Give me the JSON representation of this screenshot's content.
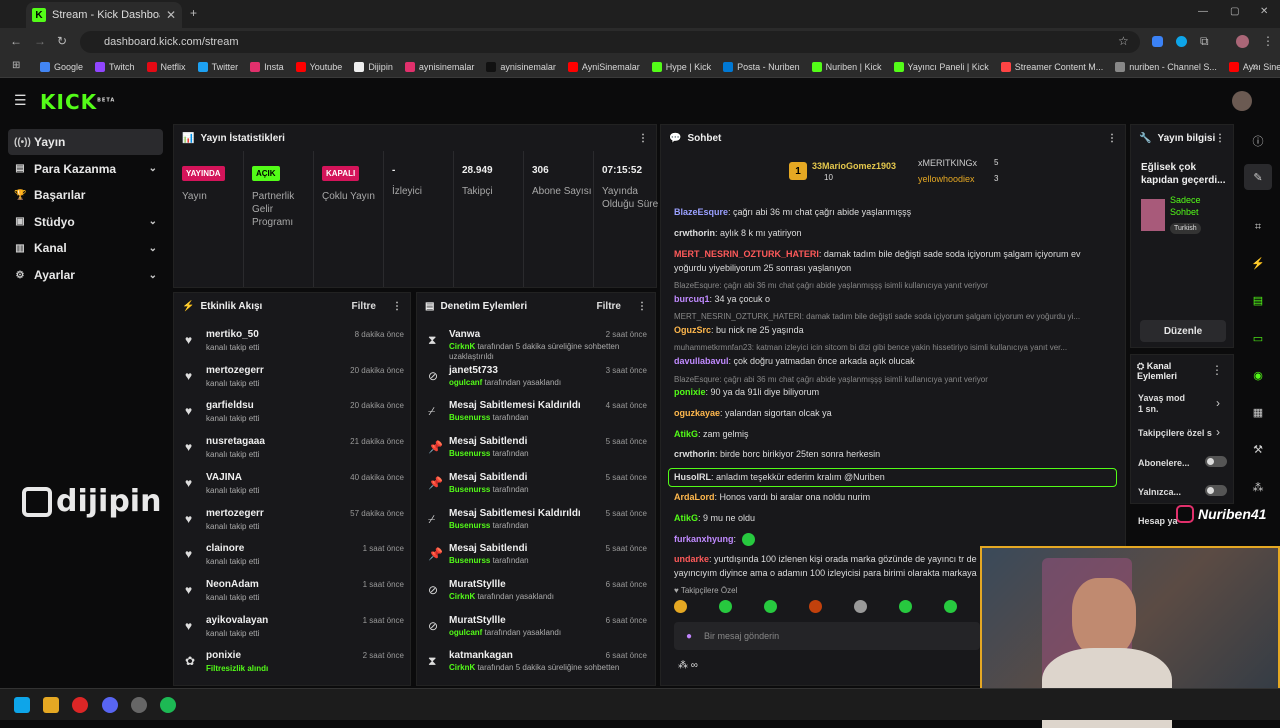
{
  "browser": {
    "tab_title": "Stream - Kick Dashboard",
    "url": "dashboard.kick.com/stream",
    "bookmarks": [
      {
        "label": "Google",
        "color": "#4285f4"
      },
      {
        "label": "Twitch",
        "color": "#9146ff"
      },
      {
        "label": "Netflix",
        "color": "#e50914"
      },
      {
        "label": "Twitter",
        "color": "#1da1f2"
      },
      {
        "label": "Insta",
        "color": "#e1306c"
      },
      {
        "label": "Youtube",
        "color": "#ff0000"
      },
      {
        "label": "Dijipin",
        "color": "#eeeeee"
      },
      {
        "label": "aynisinemalar",
        "color": "#e1306c"
      },
      {
        "label": "aynisinemalar",
        "color": "#111111"
      },
      {
        "label": "AyniSinemalar",
        "color": "#ff0000"
      },
      {
        "label": "Hype | Kick",
        "color": "#53fc18"
      },
      {
        "label": "Posta - Nuriben",
        "color": "#0078d4"
      },
      {
        "label": "Nuriben | Kick",
        "color": "#53fc18"
      },
      {
        "label": "Yayıncı Paneli | Kick",
        "color": "#53fc18"
      },
      {
        "label": "Streamer Content M...",
        "color": "#ff4444"
      },
      {
        "label": "nuriben - Channel S...",
        "color": "#888888"
      },
      {
        "label": "Aynı Sinemalar - Ça...",
        "color": "#ff0000"
      }
    ]
  },
  "kick": {
    "logo": "KICK",
    "beta": "BETA"
  },
  "sidebar": {
    "items": [
      {
        "label": "Yayın",
        "icon": "broadcast-icon",
        "chevron": false
      },
      {
        "label": "Para Kazanma",
        "icon": "money-icon",
        "chevron": true
      },
      {
        "label": "Başarılar",
        "icon": "trophy-icon",
        "chevron": false
      },
      {
        "label": "Stüdyo",
        "icon": "studio-icon",
        "chevron": true
      },
      {
        "label": "Kanal",
        "icon": "channel-icon",
        "chevron": true
      },
      {
        "label": "Ayarlar",
        "icon": "gear-icon",
        "chevron": true
      }
    ],
    "brand": "dijipin"
  },
  "stats": {
    "title": "Yayın İstatistikleri",
    "items": [
      {
        "value": "YAYINDA",
        "label": "Yayın",
        "badge_color": "#d4145a"
      },
      {
        "value": "AÇIK",
        "label": "Partnerlik Gelir Programı",
        "badge_color": "#53fc18"
      },
      {
        "value": "KAPALI",
        "label": "Çoklu Yayın",
        "badge_color": "#d4145a"
      },
      {
        "value": "-",
        "label": "İzleyici"
      },
      {
        "value": "28.949",
        "label": "Takipçi"
      },
      {
        "value": "306",
        "label": "Abone Sayısı"
      },
      {
        "value": "07:15:52",
        "label": "Yayında Olduğu Süre"
      }
    ]
  },
  "activity": {
    "title": "Etkinlik Akışı",
    "filter": "Filtre",
    "events": [
      {
        "name": "mertiko_50",
        "sub": "kanalı takip etti",
        "time": "8 dakika önce"
      },
      {
        "name": "mertozegerr",
        "sub": "kanalı takip etti",
        "time": "20 dakika önce"
      },
      {
        "name": "garfieldsu",
        "sub": "kanalı takip etti",
        "time": "20 dakika önce"
      },
      {
        "name": "nusretagaaa",
        "sub": "kanalı takip etti",
        "time": "21 dakika önce"
      },
      {
        "name": "VAJINA",
        "sub": "kanalı takip etti",
        "time": "40 dakika önce"
      },
      {
        "name": "mertozegerr",
        "sub": "kanalı takip etti",
        "time": "57 dakika önce"
      },
      {
        "name": "clainore",
        "sub": "kanalı takip etti",
        "time": "1 saat önce"
      },
      {
        "name": "NeonAdam",
        "sub": "kanalı takip etti",
        "time": "1 saat önce"
      },
      {
        "name": "ayikovalayan",
        "sub": "kanalı takip etti",
        "time": "1 saat önce"
      },
      {
        "name": "ponixie",
        "sub": "Filtresizlik alındı",
        "time": "2 saat önce"
      }
    ]
  },
  "moderation": {
    "title": "Denetim Eylemleri",
    "filter": "Filtre",
    "actions": [
      {
        "icon": "hourglass-icon",
        "name": "Vanwa",
        "actor": "CirknK",
        "rest": " tarafından 5 dakika süreliğine sohbetten uzaklaştırıldı",
        "time": "2 saat önce"
      },
      {
        "icon": "ban-icon",
        "name": "janet5t733",
        "actor": "ogulcanf",
        "rest": " tarafından yasaklandı",
        "time": "3 saat önce"
      },
      {
        "icon": "unpin-icon",
        "name": "Mesaj Sabitlemesi Kaldırıldı",
        "actor": "Busenurss",
        "rest": " tarafından",
        "time": "4 saat önce"
      },
      {
        "icon": "pin-icon",
        "name": "Mesaj Sabitlendi",
        "actor": "Busenurss",
        "rest": " tarafından",
        "time": "5 saat önce"
      },
      {
        "icon": "pin-icon",
        "name": "Mesaj Sabitlendi",
        "actor": "Busenurss",
        "rest": " tarafından",
        "time": "5 saat önce"
      },
      {
        "icon": "unpin-icon",
        "name": "Mesaj Sabitlemesi Kaldırıldı",
        "actor": "Busenurss",
        "rest": " tarafından",
        "time": "5 saat önce"
      },
      {
        "icon": "pin-icon",
        "name": "Mesaj Sabitlendi",
        "actor": "Busenurss",
        "rest": " tarafından",
        "time": "5 saat önce"
      },
      {
        "icon": "ban-icon",
        "name": "MuratStyllle",
        "actor": "CirknK",
        "rest": " tarafından yasaklandı",
        "time": "6 saat önce"
      },
      {
        "icon": "ban-icon",
        "name": "MuratStyllle",
        "actor": "ogulcanf",
        "rest": " tarafından yasaklandı",
        "time": "6 saat önce"
      },
      {
        "icon": "hourglass-icon",
        "name": "katmankagan",
        "actor": "CirknK",
        "rest": " tarafından 5 dakika süreliğine sohbetten",
        "time": "6 saat önce"
      }
    ]
  },
  "chat": {
    "title": "Sohbet",
    "top": [
      {
        "name": "33MarioGomez1903",
        "count": "10",
        "rank": "1"
      },
      {
        "name": "xMERITKINGx",
        "count": "5"
      },
      {
        "name": "yellowhoodiex",
        "count": "3"
      }
    ],
    "messages": [
      {
        "type": "msg",
        "user": "BlazeEsqure",
        "color": "#9aa0ff",
        "text": ": çağrı abi 36 mı chat çağrı abide yaşlanmışşş"
      },
      {
        "type": "msg",
        "user": "crwthorin",
        "color": "#dddddd",
        "text": ": aylık 8 k mı yatiriyon"
      },
      {
        "type": "msg",
        "user": "MERT_NESRIN_OZTURK_HATERI",
        "color": "#ff5a5a",
        "text": ": damak tadım bile değişti sade soda içiyorum şalgam içiyorum ev"
      },
      {
        "type": "cont",
        "text": "yoğurdu yiyebiliyorum 25 sonrası yaşlanıyon"
      },
      {
        "type": "reply",
        "text": "BlazeEsqure: çağrı abi 36 mı chat çağrı abide yaşlanmışşş isimli kullanıcıya yanıt veriyor"
      },
      {
        "type": "msg",
        "user": "burcuq1",
        "color": "#c08aff",
        "text": ": 34 ya çocuk o"
      },
      {
        "type": "reply",
        "text": "MERT_NESRIN_OZTURK_HATERI: damak tadım bile değişti sade soda içiyorum şalgam içiyorum ev yoğurdu yi..."
      },
      {
        "type": "msg",
        "user": "OguzSrc",
        "color": "#ffb84d",
        "text": ": bu nick ne 25 yaşında"
      },
      {
        "type": "reply",
        "text": "muhammetkrmnfan23: katman izleyici icin sitcom bi dizi gibi bence yakin hissetiriyo isimli kullanıcıya yanıt ver..."
      },
      {
        "type": "msg",
        "user": "davullabavul",
        "color": "#c08aff",
        "text": ": çok doğru yatmadan önce arkada açık olucak"
      },
      {
        "type": "reply",
        "text": "BlazeEsqure: çağrı abi 36 mı chat çağrı abide yaşlanmışşş isimli kullanıcıya yanıt veriyor"
      },
      {
        "type": "msg",
        "user": "ponixie",
        "color": "#53fc18",
        "text": ": 90 ya da 91li diye biliyorum"
      },
      {
        "type": "msg",
        "user": "oguzkayae",
        "color": "#ffb84d",
        "text": ": yalandan sigortan olcak ya"
      },
      {
        "type": "msg",
        "user": "AtikG",
        "color": "#53fc18",
        "text": ": zam gelmiş"
      },
      {
        "type": "msg",
        "user": "crwthorin",
        "color": "#dddddd",
        "text": ": birde borc birikiyor 25ten sonra herkesin"
      },
      {
        "type": "mention",
        "user": "HusoIRL",
        "color": "#dddddd",
        "text": ": anladım teşekkür ederim kralım @Nuriben"
      },
      {
        "type": "msg",
        "user": "ArdaLord",
        "color": "#ffb84d",
        "text": ": Honos vardı bi aralar ona noldu nurim"
      },
      {
        "type": "msg",
        "user": "AtikG",
        "color": "#53fc18",
        "text": ": 9 mu ne oldu"
      },
      {
        "type": "msg",
        "user": "furkanxhyung",
        "color": "#c08aff",
        "text": ":"
      },
      {
        "type": "msg",
        "user": "undarke",
        "color": "#ff5a5a",
        "text": ": yurtdışında 100 izlenen kişi orada marka gözünde de yayıncı tr de"
      },
      {
        "type": "cont",
        "text": "yayıncıyım diyince ama o adamın 100 izleyicisi para birimi olarakta markaya"
      }
    ],
    "emote_label": "Takipçilere Özel",
    "input_placeholder": "Bir mesaj gönderin"
  },
  "stream_info": {
    "title": "Yayın bilgisi",
    "stream_title": "Eğlisek çok kapıdan geçerdi...",
    "mode": "Sadece Sohbet",
    "tag": "Turkish",
    "edit": "Düzenle"
  },
  "channel_actions": {
    "title": "Kanal Eylemleri",
    "items": [
      {
        "label": "Yavaş mod",
        "sub": "1 sn."
      },
      {
        "label": "Takipçilere özel s"
      },
      {
        "label": "Abonelere..."
      },
      {
        "label": "Yalnızca..."
      },
      {
        "label": "Hesap ya"
      }
    ]
  },
  "overlay": {
    "handle": "Nuriben41"
  }
}
